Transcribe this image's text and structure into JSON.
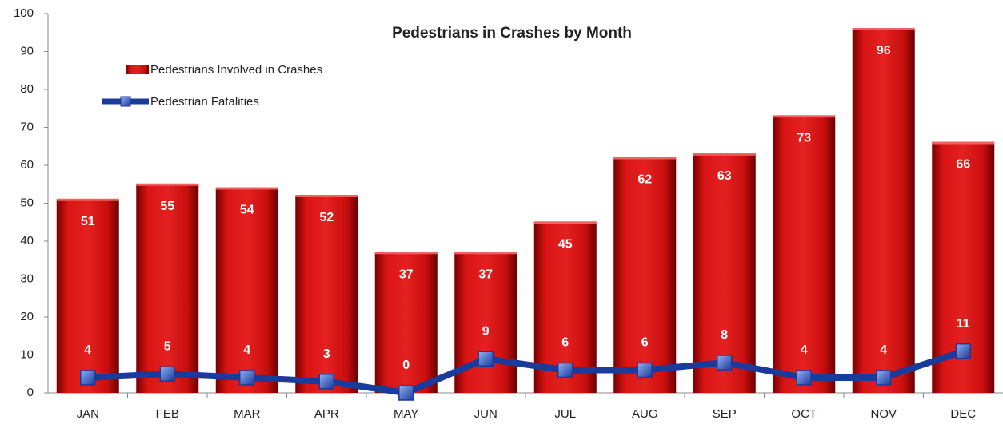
{
  "chart_data": {
    "type": "bar",
    "title": "Pedestrians in Crashes by Month",
    "categories": [
      "JAN",
      "FEB",
      "MAR",
      "APR",
      "MAY",
      "JUN",
      "JUL",
      "AUG",
      "SEP",
      "OCT",
      "NOV",
      "DEC"
    ],
    "series": [
      {
        "name": "Pedestrians Involved in Crashes",
        "type": "bar",
        "color": "#d40f0f",
        "values": [
          51,
          55,
          54,
          52,
          37,
          37,
          45,
          62,
          63,
          73,
          96,
          66
        ]
      },
      {
        "name": "Pedestrian Fatalities",
        "type": "line",
        "color": "#1a3a9c",
        "values": [
          4,
          5,
          4,
          3,
          0,
          9,
          6,
          6,
          8,
          4,
          4,
          11
        ]
      }
    ],
    "ylim": [
      0,
      100
    ],
    "yticks": [
      0,
      10,
      20,
      30,
      40,
      50,
      60,
      70,
      80,
      90,
      100
    ],
    "grid": false
  }
}
